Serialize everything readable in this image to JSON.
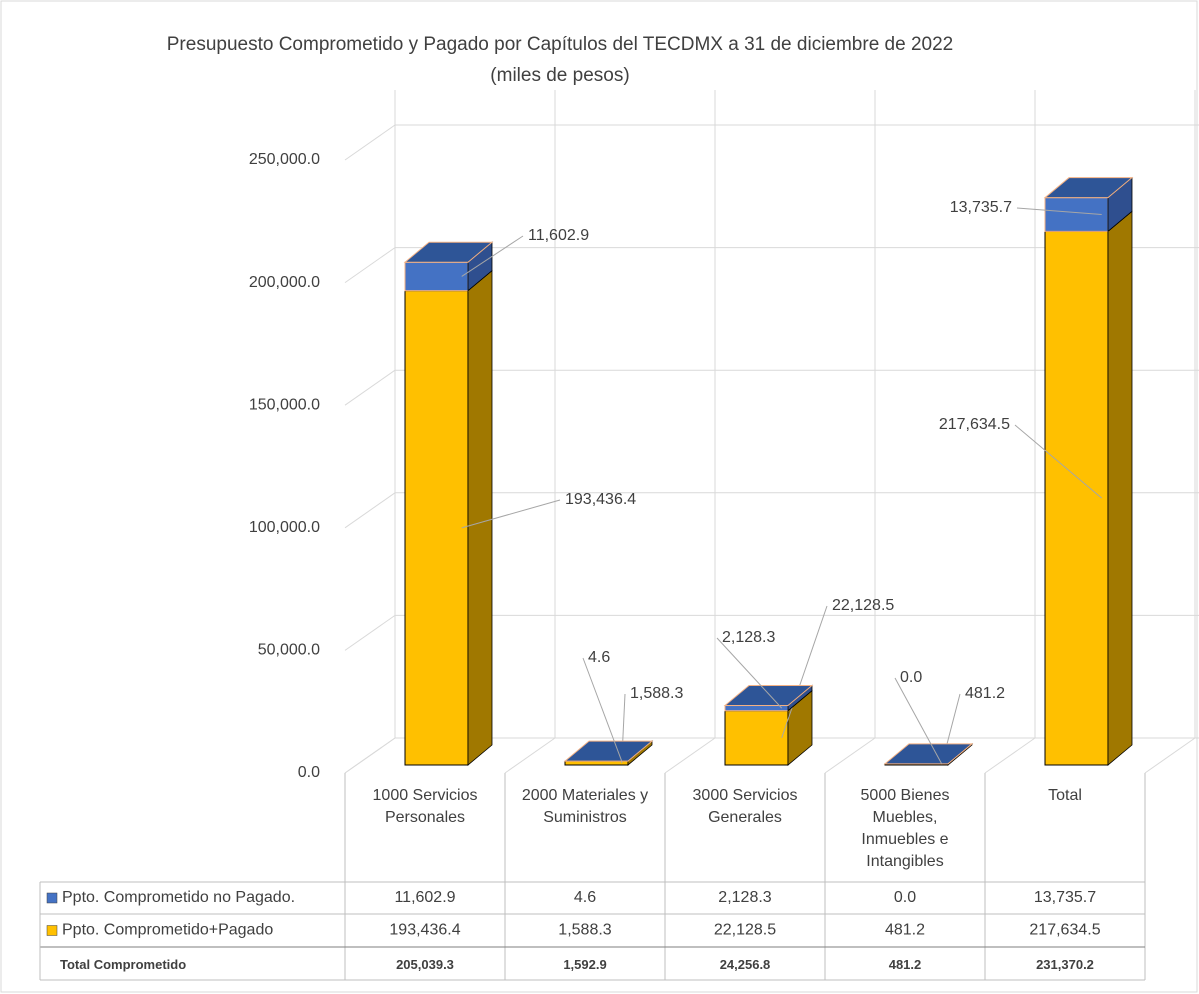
{
  "chart_data": {
    "type": "bar",
    "stacked": true,
    "title": "Presupuesto Comprometido y Pagado por Capítulos del TECDMX a 31 de diciembre de 2022",
    "subtitle": "(miles de pesos)",
    "categories": [
      "1000 Servicios Personales",
      "2000 Materiales y Suministros",
      "3000 Servicios Generales",
      "5000 Bienes Muebles, Inmuebles e Intangibles",
      "Total"
    ],
    "series": [
      {
        "name": "Ppto. Comprometido+Pagado",
        "color": "#FFC000",
        "values": [
          193436.4,
          1588.3,
          22128.5,
          481.2,
          217634.5
        ],
        "value_labels": [
          "193,436.4",
          "1,588.3",
          "22,128.5",
          "481.2",
          "217,634.5"
        ]
      },
      {
        "name": "Ppto. Comprometido no Pagado.",
        "color": "#4472C4",
        "values": [
          11602.9,
          4.6,
          2128.3,
          0.0,
          13735.7
        ],
        "value_labels": [
          "11,602.9",
          "4.6",
          "2,128.3",
          "0.0",
          "13,735.7"
        ]
      }
    ],
    "ylim": [
      0,
      250000
    ],
    "yticks": [
      {
        "value": 0,
        "label": "0.0"
      },
      {
        "value": 50000,
        "label": "50,000.0"
      },
      {
        "value": 100000,
        "label": "100,000.0"
      },
      {
        "value": 150000,
        "label": "150,000.0"
      },
      {
        "value": 200000,
        "label": "200,000.0"
      },
      {
        "value": 250000,
        "label": "250,000.0"
      }
    ],
    "grid": true,
    "data_table": {
      "total_name": "Total Comprometido",
      "totals": [
        205039.3,
        1592.9,
        24256.8,
        481.2,
        231370.2
      ],
      "total_labels": [
        "205,039.3",
        "1,592.9",
        "24,256.8",
        "481.2",
        "231,370.2"
      ]
    }
  }
}
